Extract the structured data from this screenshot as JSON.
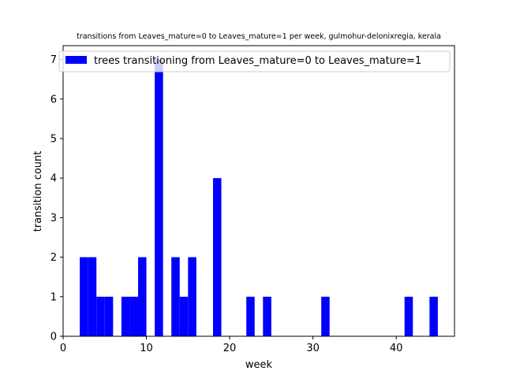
{
  "chart_data": {
    "type": "bar",
    "title": "transitions from Leaves_mature=0 to Leaves_mature=1 per week, gulmohur-delonixregia, kerala",
    "xlabel": "week",
    "ylabel": "transition count",
    "xlim": [
      0,
      47
    ],
    "ylim": [
      0,
      7.35
    ],
    "xticks": [
      0,
      10,
      20,
      30,
      40
    ],
    "yticks": [
      0,
      1,
      2,
      3,
      4,
      5,
      6,
      7
    ],
    "bin_width": 1,
    "color": "#0000ff",
    "legend": {
      "label": "trees transitioning from Leaves_mature=0 to Leaves_mature=1",
      "position": "top-left"
    },
    "bars": [
      {
        "x": 2,
        "value": 2
      },
      {
        "x": 3,
        "value": 2
      },
      {
        "x": 4,
        "value": 1
      },
      {
        "x": 5,
        "value": 1
      },
      {
        "x": 7,
        "value": 1
      },
      {
        "x": 8,
        "value": 1
      },
      {
        "x": 9,
        "value": 2
      },
      {
        "x": 11,
        "value": 7
      },
      {
        "x": 13,
        "value": 2
      },
      {
        "x": 14,
        "value": 1
      },
      {
        "x": 15,
        "value": 2
      },
      {
        "x": 18,
        "value": 4
      },
      {
        "x": 22,
        "value": 1
      },
      {
        "x": 24,
        "value": 1
      },
      {
        "x": 31,
        "value": 1
      },
      {
        "x": 41,
        "value": 1
      },
      {
        "x": 44,
        "value": 1
      }
    ]
  }
}
